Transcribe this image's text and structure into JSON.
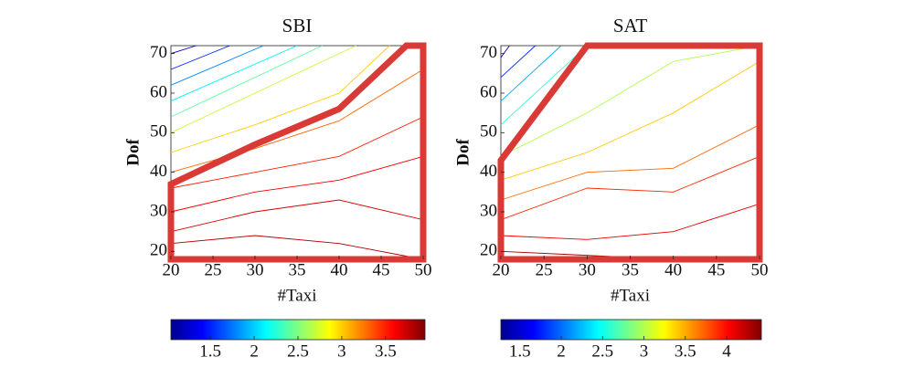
{
  "chart_data": [
    {
      "type": "contour",
      "title": "SBI",
      "xlabel": "#Taxi",
      "ylabel": "Dof",
      "xlim": [
        20,
        50
      ],
      "xticks": [
        20,
        25,
        30,
        35,
        40,
        45,
        50
      ],
      "ylim": [
        18,
        72
      ],
      "yticks": [
        20,
        30,
        40,
        50,
        60,
        70
      ],
      "clim": [
        1.05,
        3.95
      ],
      "cticks": [
        1.5,
        2,
        2.5,
        3,
        3.5
      ],
      "contours": [
        {
          "level": 1.2,
          "x": [
            20,
            23
          ],
          "y": [
            70,
            72
          ]
        },
        {
          "level": 1.5,
          "x": [
            20,
            27
          ],
          "y": [
            66,
            72
          ]
        },
        {
          "level": 1.8,
          "x": [
            20,
            31
          ],
          "y": [
            62,
            72
          ]
        },
        {
          "level": 2.1,
          "x": [
            20,
            35
          ],
          "y": [
            58,
            72
          ]
        },
        {
          "level": 2.4,
          "x": [
            20,
            38
          ],
          "y": [
            54,
            72
          ]
        },
        {
          "level": 2.7,
          "x": [
            20,
            42
          ],
          "y": [
            50,
            72
          ]
        },
        {
          "level": 3.0,
          "x": [
            20,
            30,
            40,
            46
          ],
          "y": [
            45,
            52,
            60,
            72
          ]
        },
        {
          "level": 3.3,
          "x": [
            20,
            30,
            40,
            50
          ],
          "y": [
            40,
            46,
            53,
            66
          ]
        },
        {
          "level": 3.5,
          "x": [
            20,
            30,
            40,
            50
          ],
          "y": [
            36,
            40,
            44,
            54
          ]
        },
        {
          "level": 3.6,
          "x": [
            20,
            30,
            40,
            50
          ],
          "y": [
            30,
            35,
            38,
            44
          ]
        },
        {
          "level": 3.7,
          "x": [
            20,
            30,
            40,
            50
          ],
          "y": [
            25,
            30,
            33,
            28
          ]
        },
        {
          "level": 3.8,
          "x": [
            20,
            30,
            40,
            50
          ],
          "y": [
            22,
            24,
            22,
            18
          ]
        }
      ],
      "region": {
        "color": "#d93a35",
        "x": [
          20,
          20,
          30,
          40,
          48,
          50,
          50
        ],
        "y": [
          18,
          37,
          47,
          56,
          72,
          72,
          18
        ]
      }
    },
    {
      "type": "contour",
      "title": "SAT",
      "xlabel": "#Taxi",
      "ylabel": "Dof",
      "xlim": [
        20,
        50
      ],
      "xticks": [
        20,
        25,
        30,
        35,
        40,
        45,
        50
      ],
      "ylim": [
        18,
        72
      ],
      "yticks": [
        20,
        30,
        40,
        50,
        60,
        70
      ],
      "clim": [
        1.27,
        4.42
      ],
      "cticks": [
        1.5,
        2,
        2.5,
        3,
        3.5,
        4
      ],
      "contours": [
        {
          "level": 1.4,
          "x": [
            20,
            21
          ],
          "y": [
            69,
            72
          ]
        },
        {
          "level": 1.8,
          "x": [
            20,
            24
          ],
          "y": [
            64,
            72
          ]
        },
        {
          "level": 2.2,
          "x": [
            20,
            27
          ],
          "y": [
            58,
            72
          ]
        },
        {
          "level": 2.6,
          "x": [
            20,
            30
          ],
          "y": [
            52,
            72
          ]
        },
        {
          "level": 3.0,
          "x": [
            20,
            30,
            40,
            50
          ],
          "y": [
            44,
            55,
            68,
            72
          ]
        },
        {
          "level": 3.4,
          "x": [
            20,
            30,
            40,
            50
          ],
          "y": [
            38,
            45,
            55,
            68
          ]
        },
        {
          "level": 3.7,
          "x": [
            20,
            30,
            40,
            50
          ],
          "y": [
            33,
            40,
            41,
            52
          ]
        },
        {
          "level": 3.9,
          "x": [
            20,
            30,
            40,
            50
          ],
          "y": [
            28,
            36,
            35,
            44
          ]
        },
        {
          "level": 4.1,
          "x": [
            20,
            30,
            40,
            50
          ],
          "y": [
            24,
            23,
            25,
            32
          ]
        },
        {
          "level": 4.3,
          "x": [
            20,
            30,
            40,
            50
          ],
          "y": [
            20,
            19,
            18,
            18
          ]
        }
      ],
      "region": {
        "color": "#d93a35",
        "x": [
          20,
          20,
          30,
          50,
          50
        ],
        "y": [
          18,
          43,
          72,
          72,
          18
        ]
      }
    }
  ]
}
